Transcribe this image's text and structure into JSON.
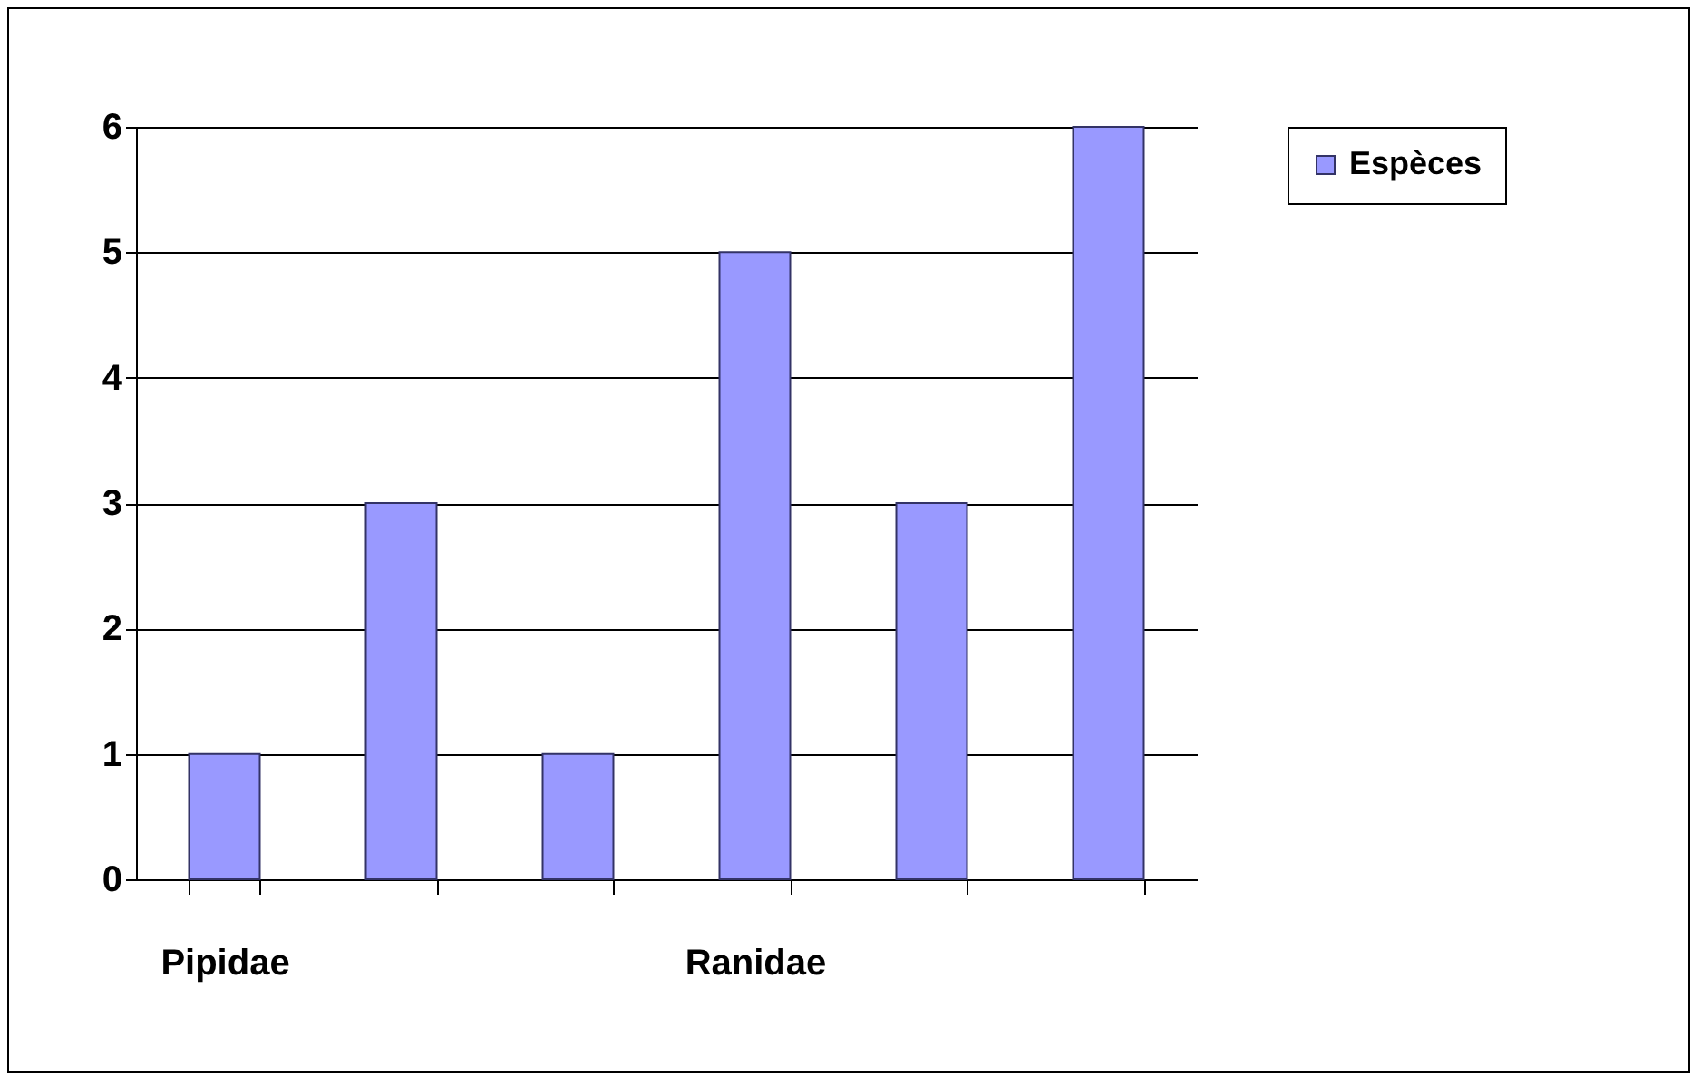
{
  "chart_data": {
    "type": "bar",
    "categories": [
      "Pipidae",
      null,
      null,
      "Ranidae",
      null,
      null
    ],
    "series": [
      {
        "name": "Espèces",
        "color": "#9999ff",
        "values": [
          1,
          3,
          1,
          5,
          3,
          6
        ]
      }
    ],
    "ylim": [
      0,
      6
    ],
    "yticks": [
      0,
      1,
      2,
      3,
      4,
      5,
      6
    ],
    "grid": "y",
    "legend": "right"
  }
}
